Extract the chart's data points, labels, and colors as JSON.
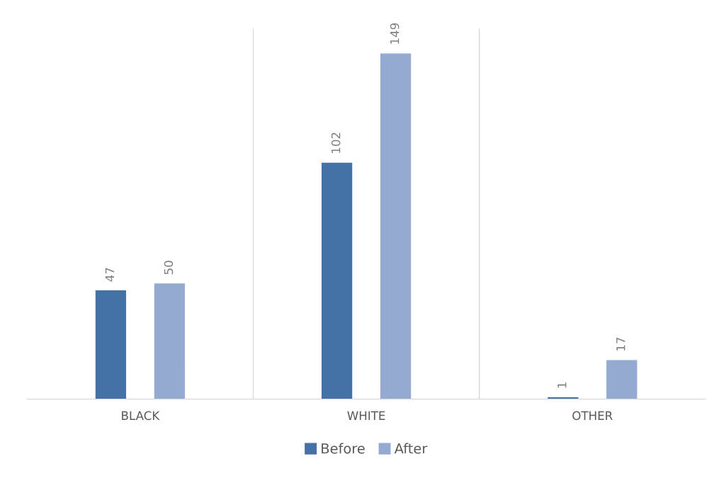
{
  "chart_data": {
    "type": "bar",
    "categories": [
      "BLACK",
      "WHITE",
      "OTHER"
    ],
    "series": [
      {
        "name": "Before",
        "color": "#4472a8",
        "values": [
          47,
          102,
          1
        ]
      },
      {
        "name": "After",
        "color": "#95aad0",
        "values": [
          50,
          149,
          17
        ]
      }
    ],
    "data_labels": true,
    "grid": "x",
    "legend": "bottom",
    "tick_labels": "x"
  }
}
